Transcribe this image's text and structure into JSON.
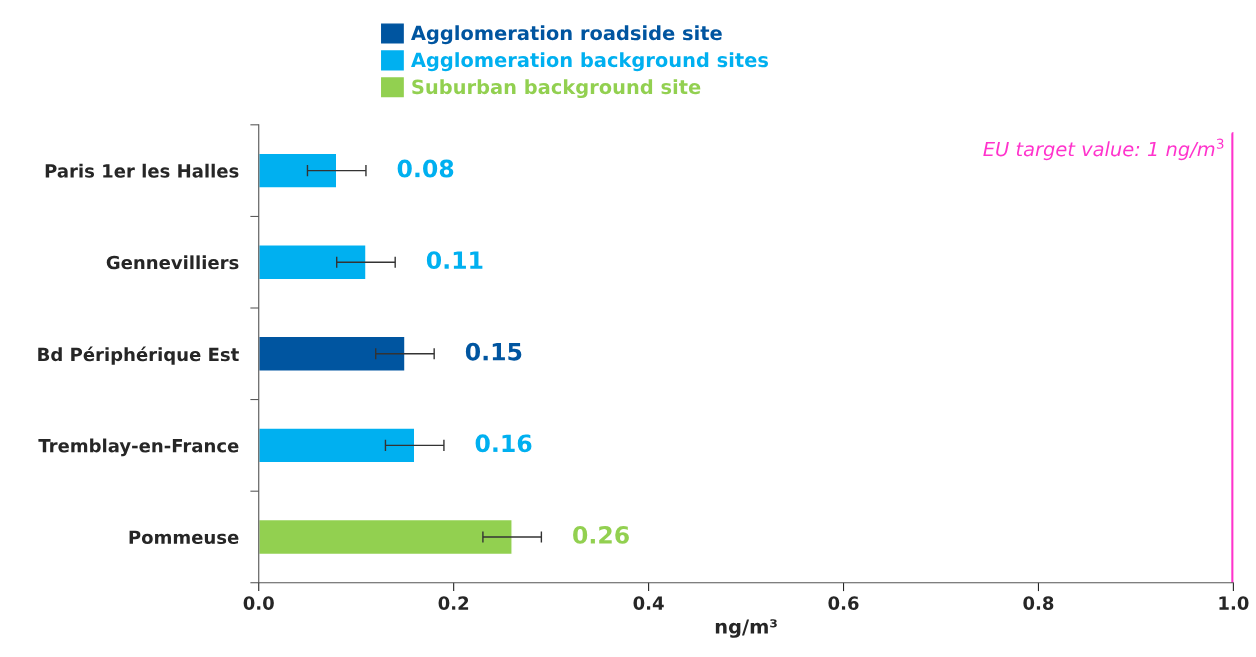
{
  "chart_data": {
    "type": "bar",
    "orientation": "horizontal",
    "categories": [
      "Paris 1er les Halles",
      "Gennevilliers",
      "Bd Périphérique Est",
      "Tremblay-en-France",
      "Pommeuse"
    ],
    "series": [
      {
        "name": "Agglomeration roadside site",
        "color": "#0055a0",
        "values": [
          null,
          null,
          0.15,
          null,
          null
        ],
        "errors": [
          null,
          null,
          0.03,
          null,
          null
        ]
      },
      {
        "name": "Agglomeration background sites",
        "color": "#00b0f0",
        "values": [
          0.08,
          0.11,
          null,
          0.16,
          null
        ],
        "errors": [
          0.03,
          0.03,
          null,
          0.03,
          null
        ]
      },
      {
        "name": "Suburban background site",
        "color": "#92d050",
        "values": [
          null,
          null,
          null,
          null,
          0.26
        ],
        "errors": [
          null,
          null,
          null,
          null,
          0.03
        ]
      }
    ],
    "data_labels": true,
    "xlabel": "ng/m³",
    "xlim": [
      0,
      1.0
    ],
    "xticks": [
      {
        "value": 0,
        "label": "0.0"
      },
      {
        "value": 0.2,
        "label": "0.2"
      },
      {
        "value": 0.4,
        "label": "0.4"
      },
      {
        "value": 0.6,
        "label": "0.6"
      },
      {
        "value": 0.8,
        "label": "0.8"
      },
      {
        "value": 1.0,
        "label": "1.0"
      }
    ],
    "ref_lines": [
      {
        "axis": "x",
        "value": 1.0,
        "label": "EU target value: 1 ng/m$^{3}$",
        "color": "#ff33cc",
        "line_style": "solid"
      }
    ],
    "grid": false,
    "legend": "top"
  }
}
